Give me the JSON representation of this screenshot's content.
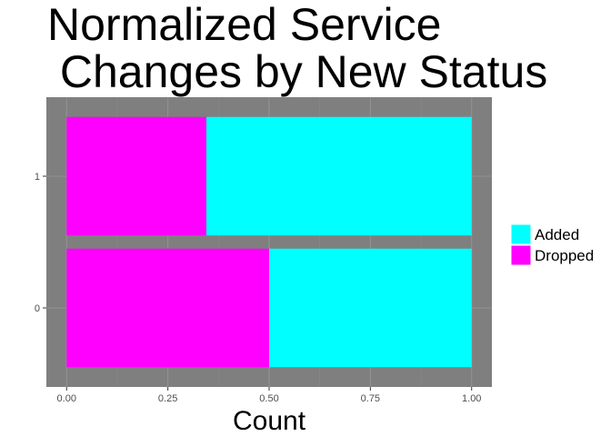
{
  "chart_data": {
    "type": "bar",
    "orientation": "horizontal",
    "stacked": true,
    "title_lines": [
      "Normalized Service",
      " Changes by New Status"
    ],
    "xlabel": "Count",
    "ylabel": "",
    "categories": [
      "0",
      "1"
    ],
    "series": [
      {
        "name": "Dropped",
        "color": "#ff00ff",
        "values": [
          0.5,
          0.345
        ]
      },
      {
        "name": "Added",
        "color": "#00ffff",
        "values": [
          0.5,
          0.655
        ]
      }
    ],
    "xlim": [
      -0.05,
      1.05
    ],
    "x_ticks": [
      0,
      0.25,
      0.5,
      0.75,
      1
    ],
    "x_tick_labels": [
      "0.00",
      "0.25",
      "0.50",
      "0.75",
      "1.00"
    ],
    "grid": true,
    "panel_background": "#7f7f7f",
    "legend_position": "right"
  }
}
